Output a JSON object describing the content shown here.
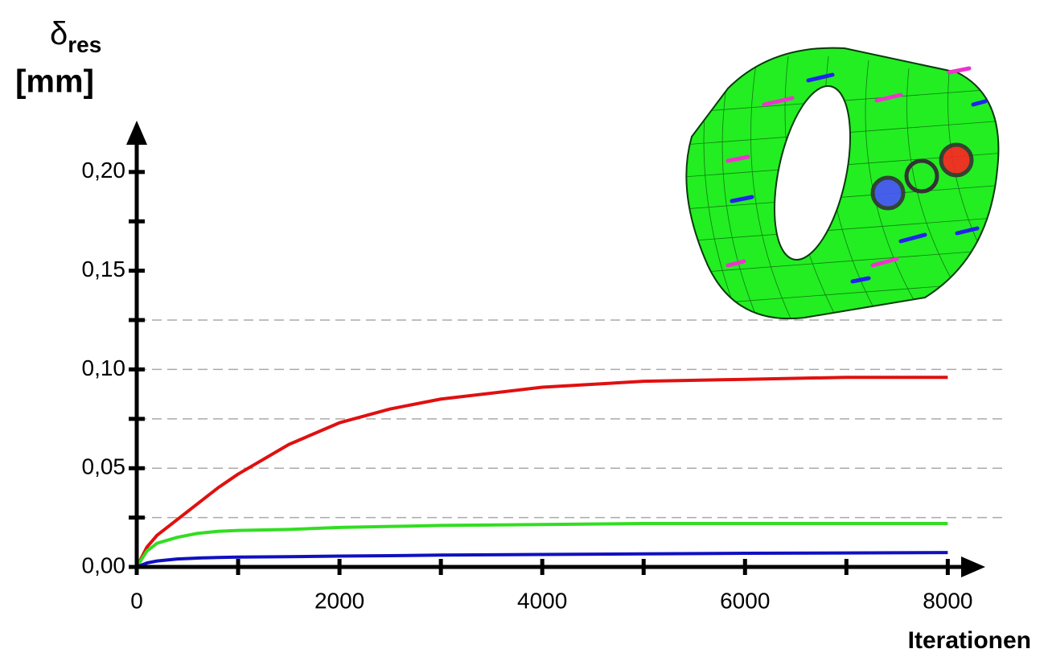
{
  "chart_data": {
    "type": "line",
    "ylabel_symbol": "δ",
    "ylabel_subscript": "res",
    "ylabel_unit": "[mm]",
    "xlabel": "Iterationen",
    "x": [
      0,
      100,
      200,
      400,
      600,
      800,
      1000,
      1500,
      2000,
      2500,
      3000,
      4000,
      5000,
      6000,
      7000,
      8000
    ],
    "series": [
      {
        "color": "#e01010",
        "values": [
          0,
          0.01,
          0.016,
          0.024,
          0.032,
          0.04,
          0.047,
          0.062,
          0.073,
          0.08,
          0.085,
          0.091,
          0.094,
          0.095,
          0.096,
          0.096
        ]
      },
      {
        "color": "#33dd22",
        "values": [
          0,
          0.008,
          0.012,
          0.015,
          0.017,
          0.018,
          0.0185,
          0.019,
          0.02,
          0.0205,
          0.021,
          0.0215,
          0.022,
          0.022,
          0.022,
          0.022
        ]
      },
      {
        "color": "#1010c0",
        "values": [
          0,
          0.002,
          0.003,
          0.004,
          0.0045,
          0.0048,
          0.005,
          0.0052,
          0.0055,
          0.0057,
          0.006,
          0.0063,
          0.0066,
          0.0069,
          0.0071,
          0.0073
        ]
      }
    ],
    "xlim": [
      0,
      8370
    ],
    "ylim": [
      0,
      0.226
    ],
    "xticks": [
      0,
      2000,
      4000,
      6000,
      8000
    ],
    "xminorticks": [
      1000,
      3000,
      5000,
      7000
    ],
    "yticks": [
      {
        "value": 0,
        "label": "0,00"
      },
      {
        "value": 0.05,
        "label": "0,05"
      },
      {
        "value": 0.1,
        "label": "0,10"
      },
      {
        "value": 0.15,
        "label": "0,15"
      },
      {
        "value": 0.2,
        "label": "0,20"
      }
    ],
    "yminorticks": [
      0.025,
      0.075,
      0.125,
      0.175
    ],
    "grid_y": [
      0.025,
      0.05,
      0.075,
      0.1,
      0.125
    ]
  }
}
